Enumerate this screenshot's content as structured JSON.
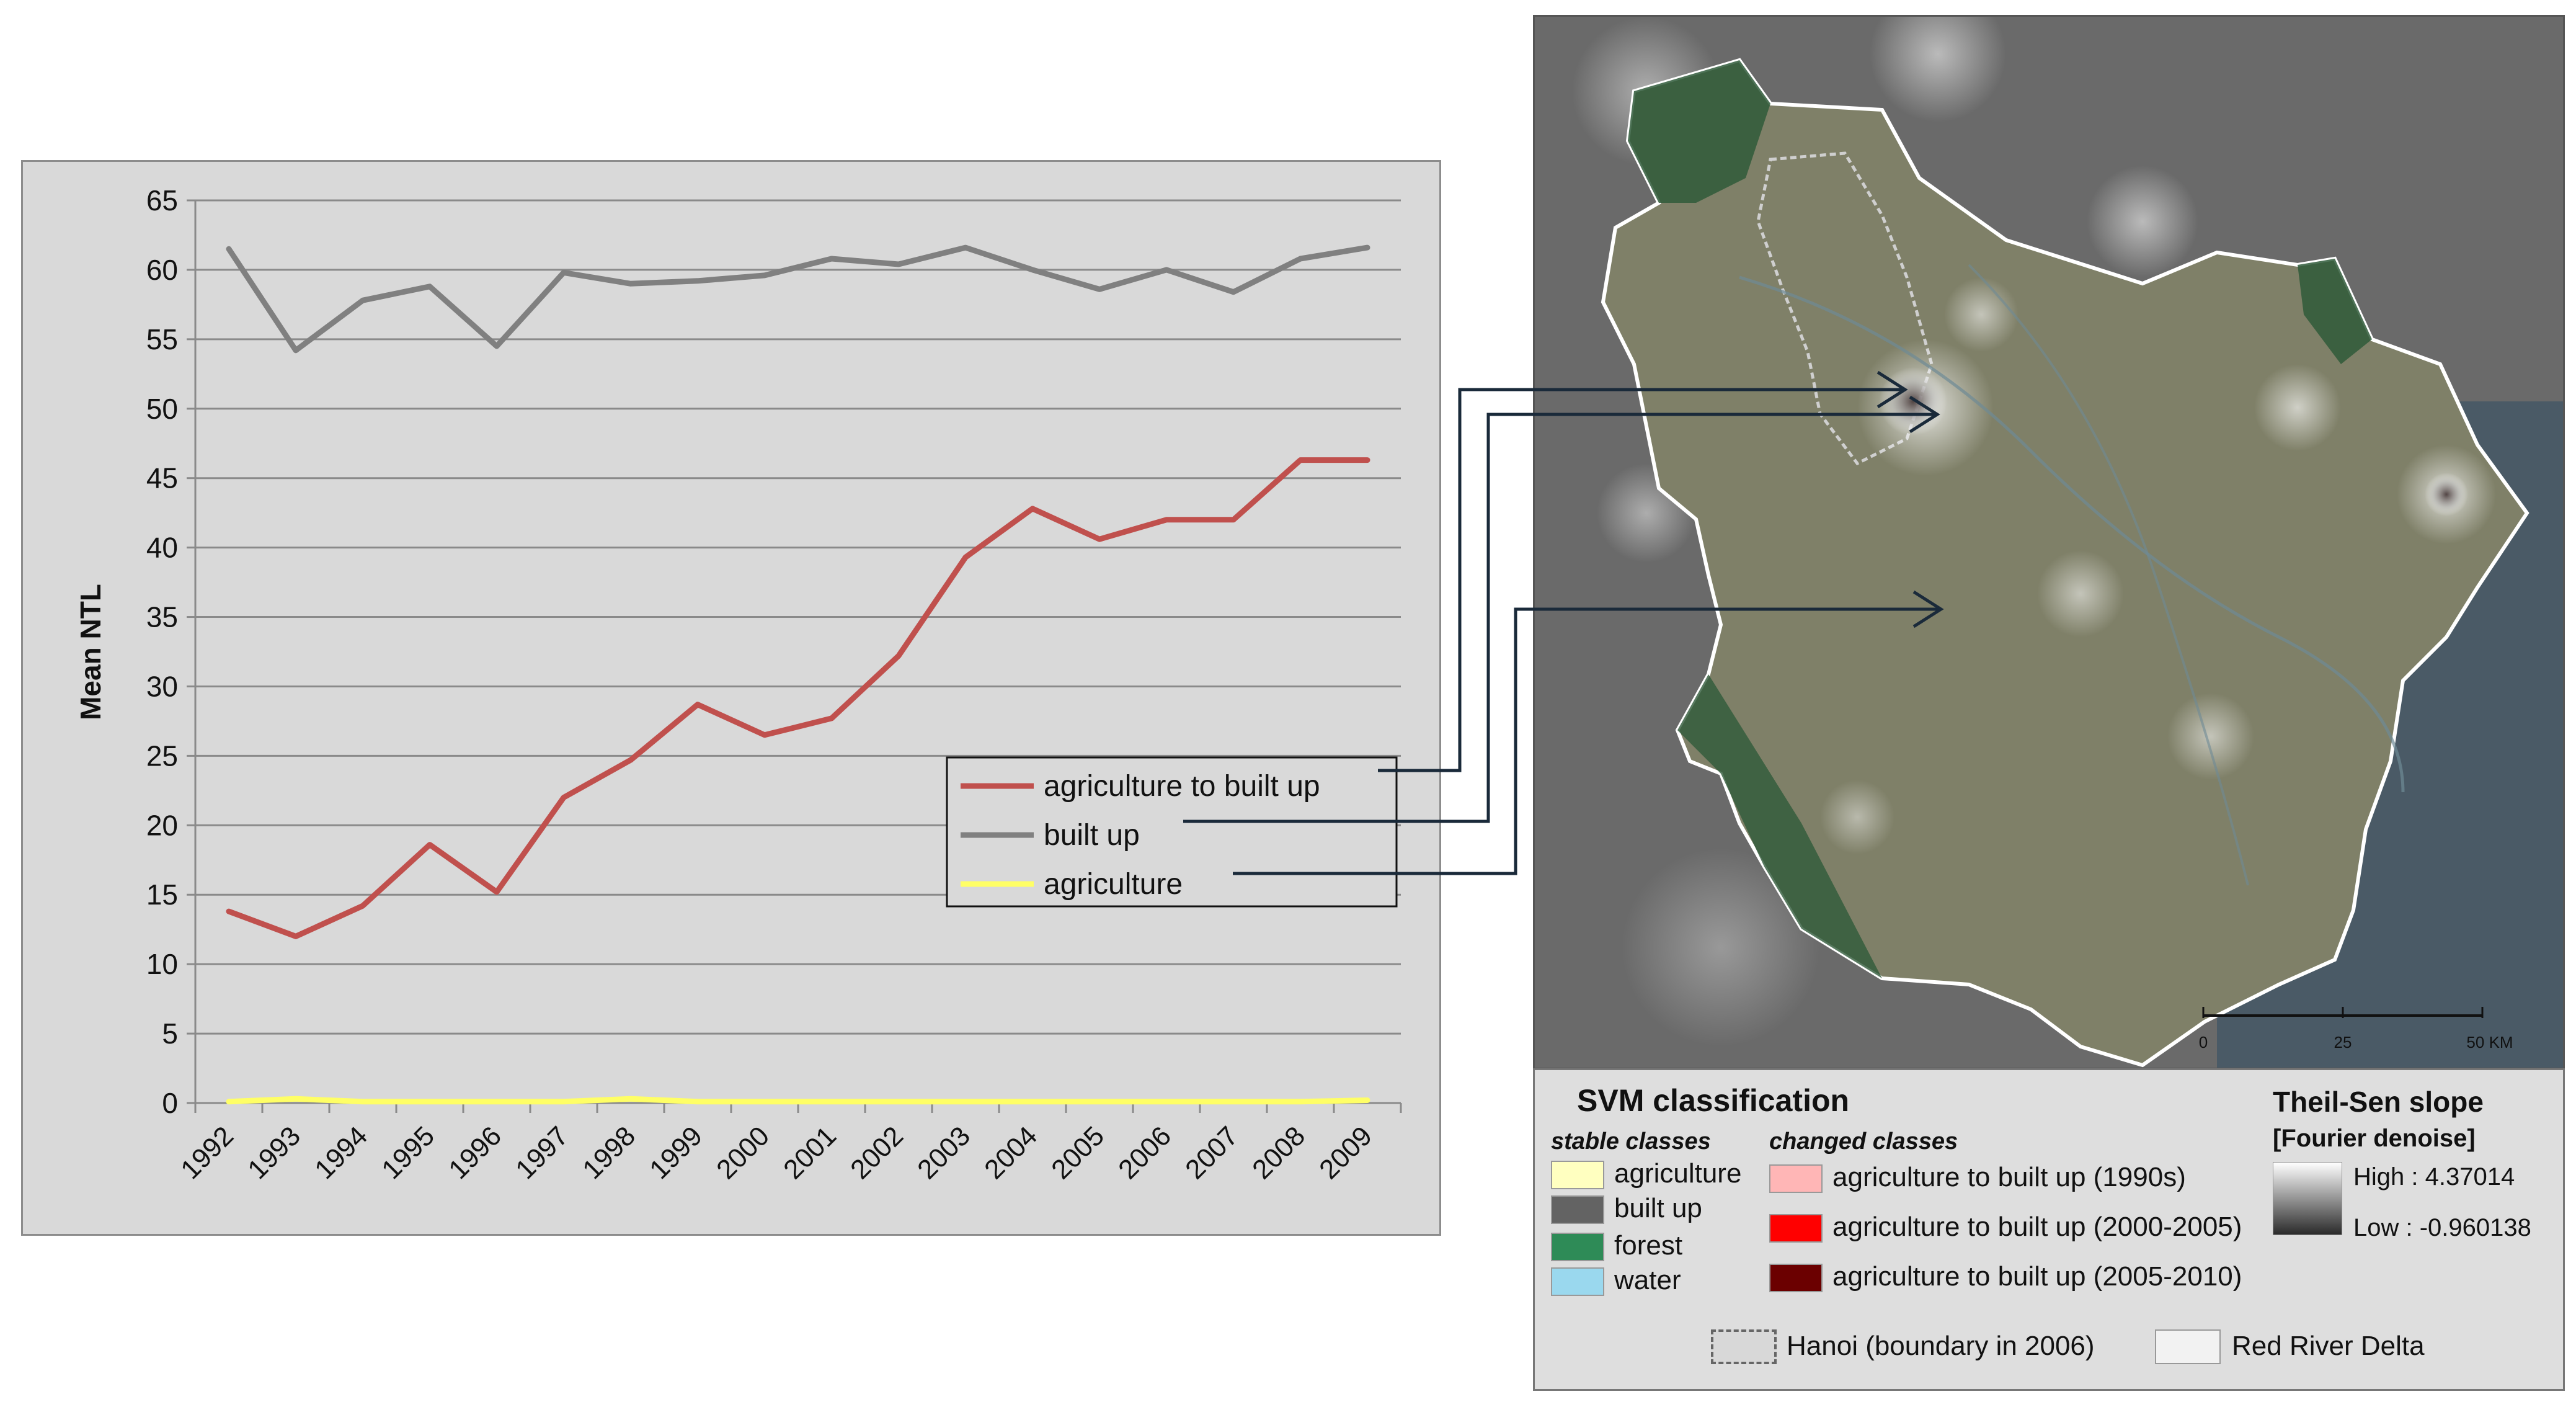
{
  "chart_data": {
    "type": "line",
    "title": "",
    "xlabel": "",
    "ylabel": "Mean NTL",
    "ylim": [
      0,
      65
    ],
    "ytick_step": 5,
    "grid": true,
    "legend_position": "center-right",
    "x": [
      "1992",
      "1993",
      "1994",
      "1995",
      "1996",
      "1997",
      "1998",
      "1999",
      "2000",
      "2001",
      "2002",
      "2003",
      "2004",
      "2005",
      "2006",
      "2007",
      "2008",
      "2009"
    ],
    "series": [
      {
        "name": "agriculture to built up",
        "color": "#c0504d",
        "values": [
          13.8,
          12.0,
          14.2,
          18.6,
          15.2,
          22.0,
          24.7,
          28.7,
          26.5,
          27.7,
          32.2,
          39.3,
          42.8,
          40.6,
          42.0,
          42.0,
          46.3,
          46.3
        ]
      },
      {
        "name": "built up",
        "color": "#808080",
        "values": [
          61.5,
          54.2,
          57.8,
          58.8,
          54.5,
          59.8,
          59.0,
          59.2,
          59.6,
          60.8,
          60.4,
          61.6,
          60.0,
          58.6,
          60.0,
          58.4,
          60.8,
          61.6
        ]
      },
      {
        "name": "agriculture",
        "color": "#ffff66",
        "values": [
          0.1,
          0.3,
          0.1,
          0.1,
          0.1,
          0.1,
          0.3,
          0.1,
          0.1,
          0.1,
          0.1,
          0.1,
          0.1,
          0.1,
          0.1,
          0.1,
          0.1,
          0.2
        ]
      }
    ]
  },
  "map": {
    "scale_labels": [
      "0",
      "25",
      "50 KM"
    ]
  },
  "legend": {
    "title": "SVM classification",
    "stable_heading": "stable classes",
    "changed_heading": "changed classes",
    "stable": [
      {
        "label": "agriculture",
        "color": "#ffffc0"
      },
      {
        "label": "built up",
        "color": "#636363"
      },
      {
        "label": "forest",
        "color": "#2e8b57"
      },
      {
        "label": "water",
        "color": "#9ad8ee"
      }
    ],
    "changed": [
      {
        "label": "agriculture to built up (1990s)",
        "color": "#ffb6b6"
      },
      {
        "label": "agriculture to built up (2000-2005)",
        "color": "#ff0000"
      },
      {
        "label": "agriculture to built up (2005-2010)",
        "color": "#6b0000"
      }
    ],
    "slope_title": "Theil-Sen slope",
    "slope_subtitle": "[Fourier denoise]",
    "high_label": "High : 4.37014",
    "low_label": "Low : -0.960138",
    "hanoi_label": "Hanoi (boundary in 2006)",
    "delta_label": "Red River Delta"
  }
}
